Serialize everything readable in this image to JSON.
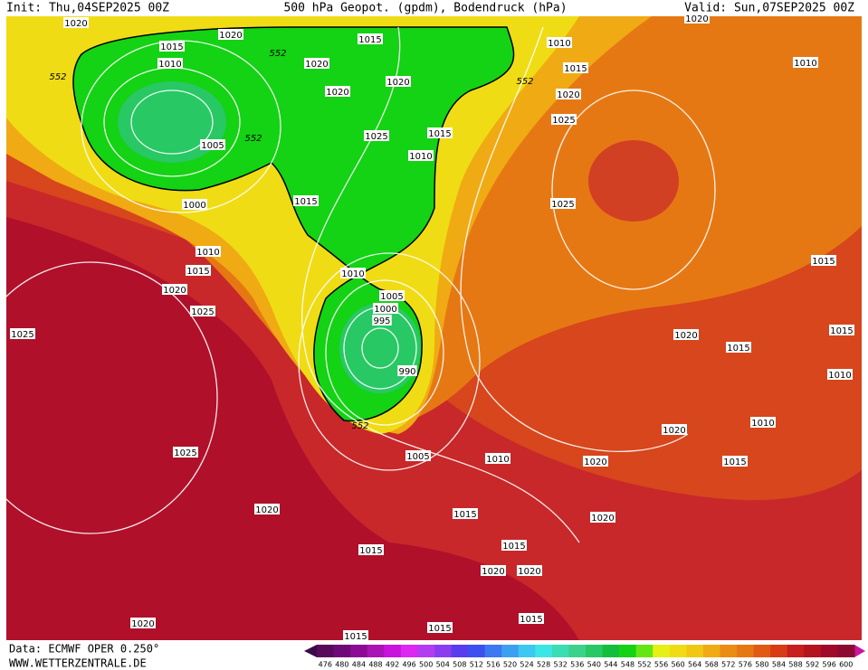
{
  "header": {
    "init": "Init: Thu,04SEP2025 00Z",
    "title": "500 hPa Geopot. (gpdm), Bodendruck (hPa)",
    "valid": "Valid: Sun,07SEP2025 00Z"
  },
  "footer": {
    "source": "Data: ECMWF OPER 0.250°",
    "site": "WWW.WETTERZENTRALE.DE"
  },
  "isobar_labels": [
    1020,
    1015,
    1010,
    1005,
    1000,
    1010,
    1015,
    1020,
    1025,
    1025,
    1025,
    1020,
    1015,
    1020,
    1015,
    1015,
    1015,
    1020,
    1020,
    1015,
    1015,
    1020,
    1010,
    1005,
    990,
    995,
    1000,
    1005,
    1010,
    1015,
    1010,
    1015,
    1025,
    1020,
    1020,
    1020,
    1020,
    1015,
    1010,
    1015,
    1020,
    1025,
    1025,
    1010,
    1015,
    1015,
    1010,
    1010,
    1020,
    1015,
    1020,
    1015,
    1020,
    1020
  ],
  "contour_labels": [
    552,
    552,
    552,
    552,
    552
  ],
  "colorbar": {
    "ticks": [
      476,
      480,
      484,
      488,
      492,
      496,
      500,
      504,
      508,
      512,
      516,
      520,
      524,
      528,
      532,
      536,
      540,
      544,
      548,
      552,
      556,
      560,
      564,
      568,
      572,
      576,
      580,
      584,
      588,
      592,
      596,
      600
    ],
    "colors": [
      "#5a0a5a",
      "#6e0a78",
      "#8c0a96",
      "#aa14b4",
      "#c814dc",
      "#dc28f0",
      "#b43cf0",
      "#8c3cf0",
      "#5a3cf0",
      "#3c50f0",
      "#3c78f0",
      "#3ca0f0",
      "#3cc8f0",
      "#3ce6e6",
      "#3cdcb4",
      "#3cd28c",
      "#28c864",
      "#14be3c",
      "#14d214",
      "#64e614",
      "#e6f014",
      "#f0dc14",
      "#f0c814",
      "#f0aa14",
      "#eb8c14",
      "#e67814",
      "#e15a14",
      "#d73c14",
      "#c81e1e",
      "#b4141e",
      "#a00a28",
      "#8c0a32"
    ]
  }
}
